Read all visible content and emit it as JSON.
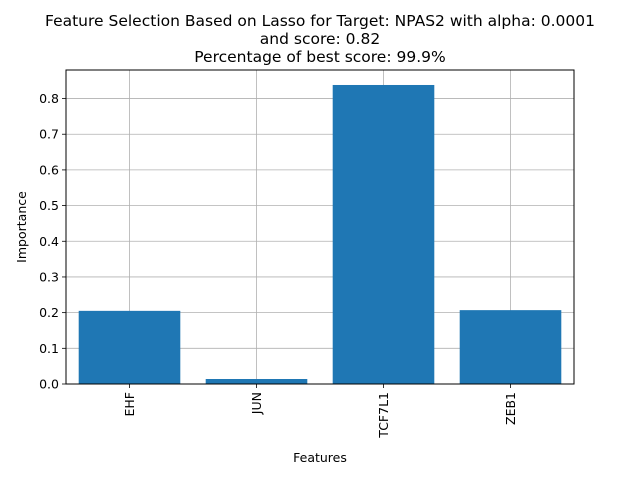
{
  "chart_data": {
    "type": "bar",
    "title_lines": [
      "Feature Selection Based on Lasso for Target: NPAS2 with alpha: 0.0001",
      "and score: 0.82",
      "Percentage of best score: 99.9%"
    ],
    "xlabel": "Features",
    "ylabel": "Importance",
    "categories": [
      "EHF",
      "JUN",
      "TCF7L1",
      "ZEB1"
    ],
    "values": [
      0.205,
      0.014,
      0.838,
      0.207
    ],
    "ylim": [
      0,
      0.88
    ],
    "yticks": [
      0.0,
      0.1,
      0.2,
      0.3,
      0.4,
      0.5,
      0.6,
      0.7,
      0.8
    ],
    "ytick_labels": [
      "0.0",
      "0.1",
      "0.2",
      "0.3",
      "0.4",
      "0.5",
      "0.6",
      "0.7",
      "0.8"
    ],
    "grid": true,
    "bar_color": "#1f77b4"
  }
}
